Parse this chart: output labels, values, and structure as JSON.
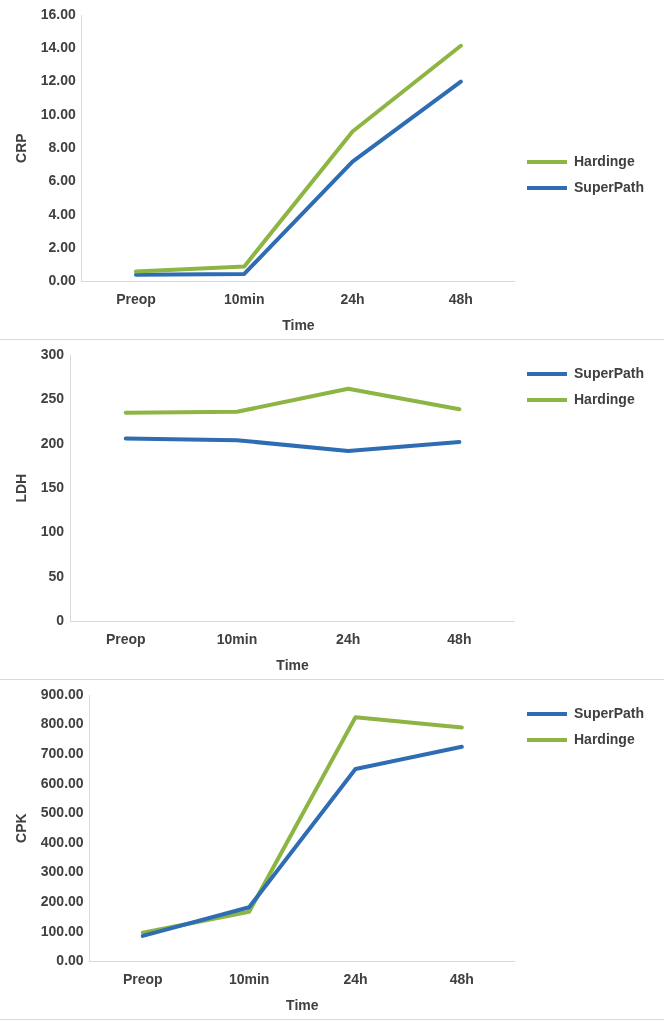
{
  "chart_data": [
    {
      "type": "line",
      "ylabel": "CRP",
      "xlabel": "Time",
      "categories": [
        "Preop",
        "10min",
        "24h",
        "48h"
      ],
      "ylim": [
        0,
        16
      ],
      "yticks": [
        {
          "value": 0,
          "label": "0.00"
        },
        {
          "value": 2,
          "label": "2.00"
        },
        {
          "value": 4,
          "label": "4.00"
        },
        {
          "value": 6,
          "label": "6.00"
        },
        {
          "value": 8,
          "label": "8.00"
        },
        {
          "value": 10,
          "label": "10.00"
        },
        {
          "value": 12,
          "label": "12.00"
        },
        {
          "value": 14,
          "label": "14.00"
        },
        {
          "value": 16,
          "label": "16.00"
        }
      ],
      "grid": false,
      "legend": "right",
      "marker": "none",
      "line_style": "solid",
      "series": [
        {
          "name": "Hardinge",
          "color": "#8db543",
          "values": [
            0.6,
            0.9,
            9.0,
            14.15
          ]
        },
        {
          "name": "SuperPath",
          "color": "#2e6db4",
          "values": [
            0.4,
            0.45,
            7.2,
            12.0
          ]
        }
      ]
    },
    {
      "type": "line",
      "ylabel": "LDH",
      "xlabel": "Time",
      "categories": [
        "Preop",
        "10min",
        "24h",
        "48h"
      ],
      "ylim": [
        0,
        300
      ],
      "yticks": [
        0,
        50,
        100,
        150,
        200,
        250,
        300
      ],
      "grid": false,
      "legend": "top right",
      "marker": "none",
      "line_style": "solid",
      "series": [
        {
          "name": "SuperPath",
          "color": "#2e6db4",
          "values": [
            206,
            204,
            192,
            202
          ]
        },
        {
          "name": "Hardinge",
          "color": "#8db543",
          "values": [
            235,
            236,
            262,
            239
          ]
        }
      ]
    },
    {
      "type": "line",
      "ylabel": "CPK",
      "xlabel": "Time",
      "categories": [
        "Preop",
        "10min",
        "24h",
        "48h"
      ],
      "ylim": [
        0,
        900
      ],
      "yticks": [
        {
          "value": 0,
          "label": "0.00"
        },
        {
          "value": 100,
          "label": "100.00"
        },
        {
          "value": 200,
          "label": "200.00"
        },
        {
          "value": 300,
          "label": "300.00"
        },
        {
          "value": 400,
          "label": "400.00"
        },
        {
          "value": 500,
          "label": "500.00"
        },
        {
          "value": 600,
          "label": "600.00"
        },
        {
          "value": 700,
          "label": "700.00"
        },
        {
          "value": 800,
          "label": "800.00"
        },
        {
          "value": 900,
          "label": "900.00"
        }
      ],
      "grid": false,
      "legend": "top right",
      "marker": "none",
      "line_style": "solid",
      "series": [
        {
          "name": "SuperPath",
          "color": "#2e6db4",
          "values": [
            86,
            183,
            650,
            725
          ]
        },
        {
          "name": "Hardinge",
          "color": "#8db543",
          "values": [
            97,
            168,
            825,
            790
          ]
        }
      ]
    }
  ]
}
